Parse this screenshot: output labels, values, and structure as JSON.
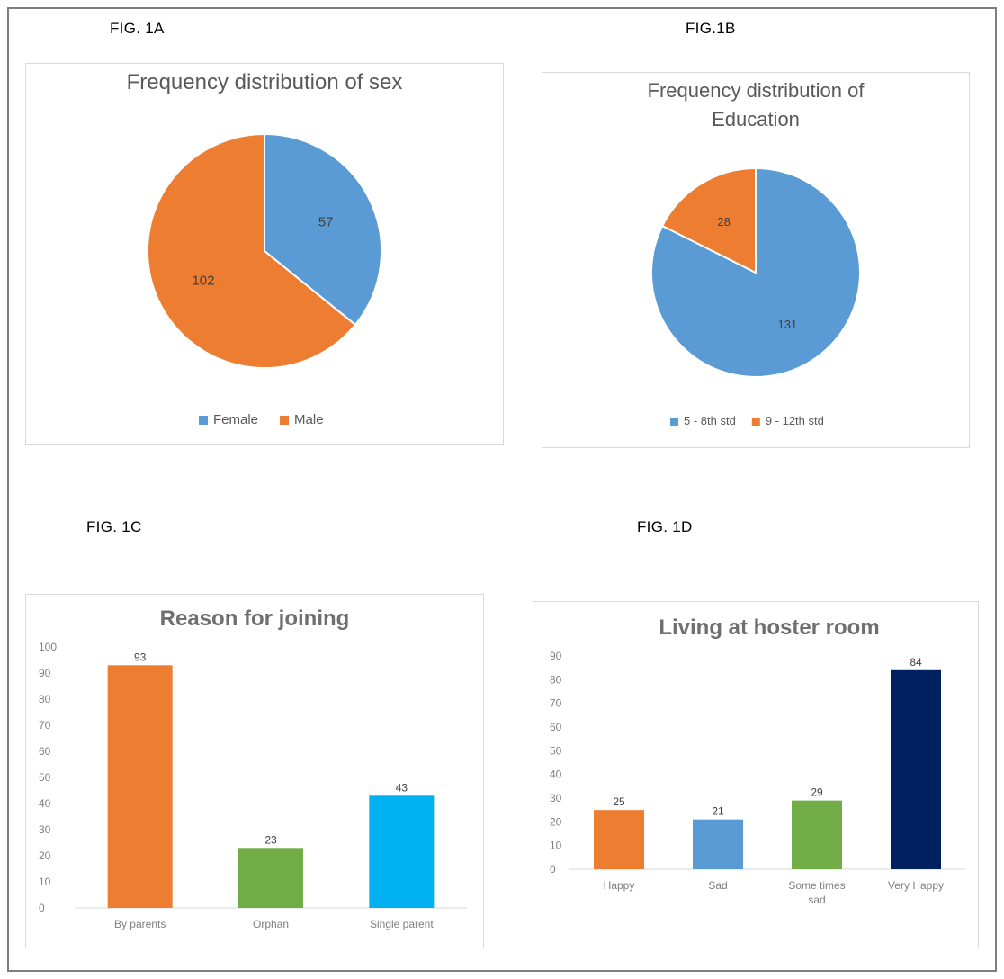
{
  "figure_labels": {
    "a": "FIG. 1A",
    "b": "FIG.1B",
    "c": "FIG. 1C",
    "d": "FIG. 1D"
  },
  "colors": {
    "orange": "#ed7d31",
    "blue": "#5b9bd5",
    "green": "#70ad47",
    "cyan": "#00b0f0",
    "navy": "#002060",
    "text": "#595959",
    "axis": "#d9d9d9"
  },
  "chart_data": [
    {
      "id": "fig1a",
      "type": "pie",
      "title": "Frequency distribution of sex",
      "categories": [
        "Female",
        "Male"
      ],
      "values": [
        57,
        102
      ],
      "colors": [
        "#5b9bd5",
        "#ed7d31"
      ],
      "start_angle_deg": 0,
      "legend": "bottom"
    },
    {
      "id": "fig1b",
      "type": "pie",
      "title": "Frequency distribution of Education",
      "categories": [
        "5 - 8th std",
        "9 - 12th std"
      ],
      "values": [
        131,
        28
      ],
      "colors": [
        "#5b9bd5",
        "#ed7d31"
      ],
      "start_angle_deg": 0,
      "legend": "bottom"
    },
    {
      "id": "fig1c",
      "type": "bar",
      "title": "Reason for joining",
      "categories": [
        "By parents",
        "Orphan",
        "Single parent"
      ],
      "values": [
        93,
        23,
        43
      ],
      "colors": [
        "#ed7d31",
        "#70ad47",
        "#00b0f0"
      ],
      "ylim": [
        0,
        100
      ],
      "yticks": [
        0,
        10,
        20,
        30,
        40,
        50,
        60,
        70,
        80,
        90,
        100
      ],
      "grid": false
    },
    {
      "id": "fig1d",
      "type": "bar",
      "title": "Living at hoster room",
      "categories": [
        "Happy",
        "Sad",
        "Some times sad",
        "Very Happy"
      ],
      "category_lines": [
        [
          "Happy"
        ],
        [
          "Sad"
        ],
        [
          "Some times",
          "sad"
        ],
        [
          "Very Happy"
        ]
      ],
      "values": [
        25,
        21,
        29,
        84
      ],
      "colors": [
        "#ed7d31",
        "#5b9bd5",
        "#70ad47",
        "#002060"
      ],
      "ylim": [
        0,
        90
      ],
      "yticks": [
        0,
        10,
        20,
        30,
        40,
        50,
        60,
        70,
        80,
        90
      ],
      "grid": false
    }
  ]
}
